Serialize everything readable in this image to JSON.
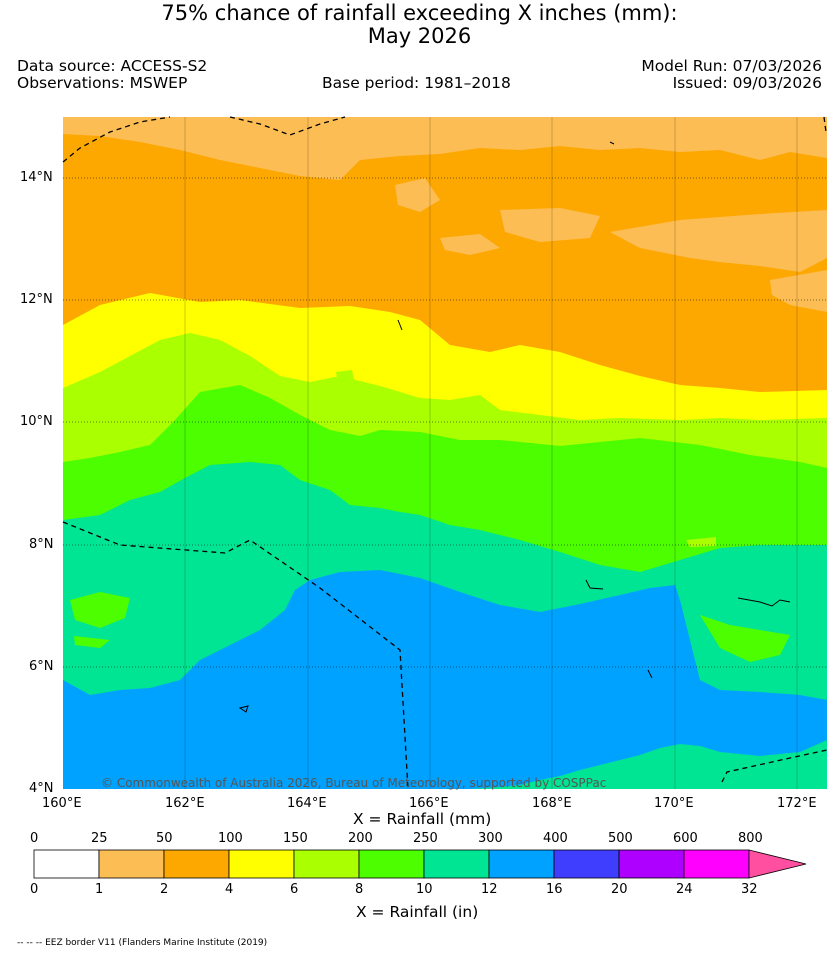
{
  "header": {
    "title_line1": "75% chance of rainfall exceeding X inches (mm):",
    "title_line2": "May 2026",
    "data_source": "Data source: ACCESS-S2",
    "observations": "Observations: MSWEP",
    "base_period": "Base period: 1981–2018",
    "model_run": "Model Run: 07/03/2026",
    "issued": "Issued: 09/03/2026"
  },
  "map": {
    "lat_labels": [
      "14°N",
      "12°N",
      "10°N",
      "8°N",
      "6°N",
      "4°N"
    ],
    "lon_labels": [
      "160°E",
      "162°E",
      "164°E",
      "166°E",
      "168°E",
      "170°E",
      "172°E"
    ],
    "x_axis_title": "X = Rainfall (mm)",
    "copyright": "© Commonwealth of Australia 2026, Bureau of Meteorology, supported by COSPPac",
    "extent": {
      "lon_min": 160,
      "lon_max": 172.5,
      "lat_min": 4,
      "lat_max": 15
    }
  },
  "colorbar": {
    "mm_labels": [
      "0",
      "25",
      "50",
      "100",
      "150",
      "200",
      "250",
      "300",
      "400",
      "500",
      "600",
      "800"
    ],
    "in_labels": [
      "0",
      "1",
      "2",
      "4",
      "6",
      "8",
      "10",
      "12",
      "16",
      "20",
      "24",
      "32"
    ],
    "colors": [
      "#ffffff",
      "#fdbd55",
      "#fda800",
      "#ffff00",
      "#aaff00",
      "#4cfe00",
      "#00e593",
      "#00a2ff",
      "#3f3dfe",
      "#ad00fe",
      "#ff00ff",
      "#ff4fa0"
    ],
    "in_axis_title": "X = Rainfall (in)"
  },
  "footnote": "-- -- -- EEZ border V11 (Flanders Marine Institute (2019)"
}
